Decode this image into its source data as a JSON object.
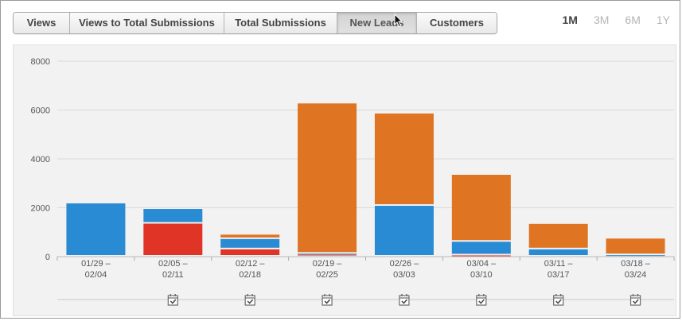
{
  "tabs": [
    {
      "label": "Views",
      "active": false
    },
    {
      "label": "Views to Total Submissions",
      "active": false
    },
    {
      "label": "Total Submissions",
      "active": false
    },
    {
      "label": "New Leads",
      "active": true
    },
    {
      "label": "Customers",
      "active": false
    }
  ],
  "ranges": [
    {
      "label": "1M",
      "active": true
    },
    {
      "label": "3M",
      "active": false
    },
    {
      "label": "6M",
      "active": false
    },
    {
      "label": "1Y",
      "active": false
    }
  ],
  "chart_data": {
    "type": "bar",
    "stacked": true,
    "categories": [
      [
        "01/29 –",
        "02/04"
      ],
      [
        "02/05 –",
        "02/11"
      ],
      [
        "02/12 –",
        "02/18"
      ],
      [
        "02/19 –",
        "02/25"
      ],
      [
        "02/26 –",
        "03/03"
      ],
      [
        "03/04 –",
        "03/10"
      ],
      [
        "03/11 –",
        "03/17"
      ],
      [
        "03/18 –",
        "03/24"
      ]
    ],
    "series": [
      {
        "color": "#df3426",
        "values": [
          0,
          1350,
          300,
          80,
          0,
          50,
          0,
          0
        ]
      },
      {
        "color": "#288bd3",
        "values": [
          2180,
          600,
          420,
          40,
          2080,
          560,
          300,
          60
        ]
      },
      {
        "color": "#df7423",
        "values": [
          0,
          0,
          180,
          6150,
          3780,
          2740,
          1040,
          680
        ]
      }
    ],
    "ylim": [
      0,
      8000
    ],
    "yticks": [
      0,
      2000,
      4000,
      6000,
      8000
    ],
    "grid": true,
    "annotation_icon": "calendar-check-icon",
    "annotated_categories": [
      1,
      2,
      3,
      4,
      5,
      6,
      7
    ]
  }
}
